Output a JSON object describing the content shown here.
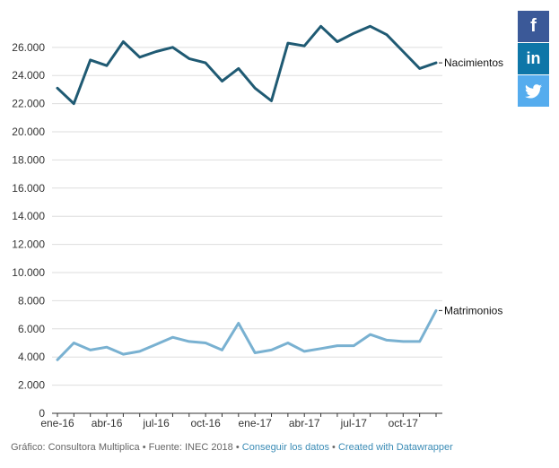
{
  "chart_data": {
    "type": "line",
    "x": [
      "ene-16",
      "feb-16",
      "mar-16",
      "abr-16",
      "may-16",
      "jun-16",
      "jul-16",
      "ago-16",
      "sep-16",
      "oct-16",
      "nov-16",
      "dic-16",
      "ene-17",
      "feb-17",
      "mar-17",
      "abr-17",
      "may-17",
      "jun-17",
      "jul-17",
      "ago-17",
      "sep-17",
      "oct-17",
      "nov-17",
      "dic-17"
    ],
    "x_tick_labels": [
      "ene-16",
      "abr-16",
      "jul-16",
      "oct-16",
      "ene-17",
      "abr-17",
      "jul-17",
      "oct-17"
    ],
    "y_ticks": [
      "0",
      "2.000",
      "4.000",
      "6.000",
      "8.000",
      "10.000",
      "12.000",
      "14.000",
      "16.000",
      "18.000",
      "20.000",
      "22.000",
      "24.000",
      "26.000"
    ],
    "ylim": [
      0,
      27600
    ],
    "grid": true,
    "series": [
      {
        "name": "Nacimientos",
        "color": "#1f5a73",
        "values": [
          23100,
          22000,
          25100,
          24700,
          26400,
          25300,
          25700,
          26000,
          25200,
          24900,
          23600,
          24500,
          23100,
          22200,
          26300,
          26100,
          27500,
          26400,
          27000,
          27500,
          26900,
          25700,
          24500,
          24900
        ]
      },
      {
        "name": "Matrimonios",
        "color": "#79b1d1",
        "values": [
          3800,
          5000,
          4500,
          4700,
          4200,
          4400,
          4900,
          5400,
          5100,
          5000,
          4500,
          6400,
          4300,
          4500,
          5000,
          4400,
          4600,
          4800,
          4800,
          5600,
          5200,
          5100,
          5100,
          7300
        ]
      }
    ]
  },
  "footer": {
    "prefix": "Gráfico: Consultora Multiplica • Fuente: INEC 2018 • ",
    "link_data": "Conseguir los datos",
    "separator": " • ",
    "link_credit": "Created with Datawrapper"
  },
  "share": {
    "facebook": {
      "label": "f",
      "color": "#3b5998",
      "icon": "facebook-icon"
    },
    "linkedin": {
      "label": "in",
      "color": "#0e76a8",
      "icon": "linkedin-icon"
    },
    "twitter": {
      "color": "#55acee",
      "icon": "twitter-icon"
    }
  }
}
